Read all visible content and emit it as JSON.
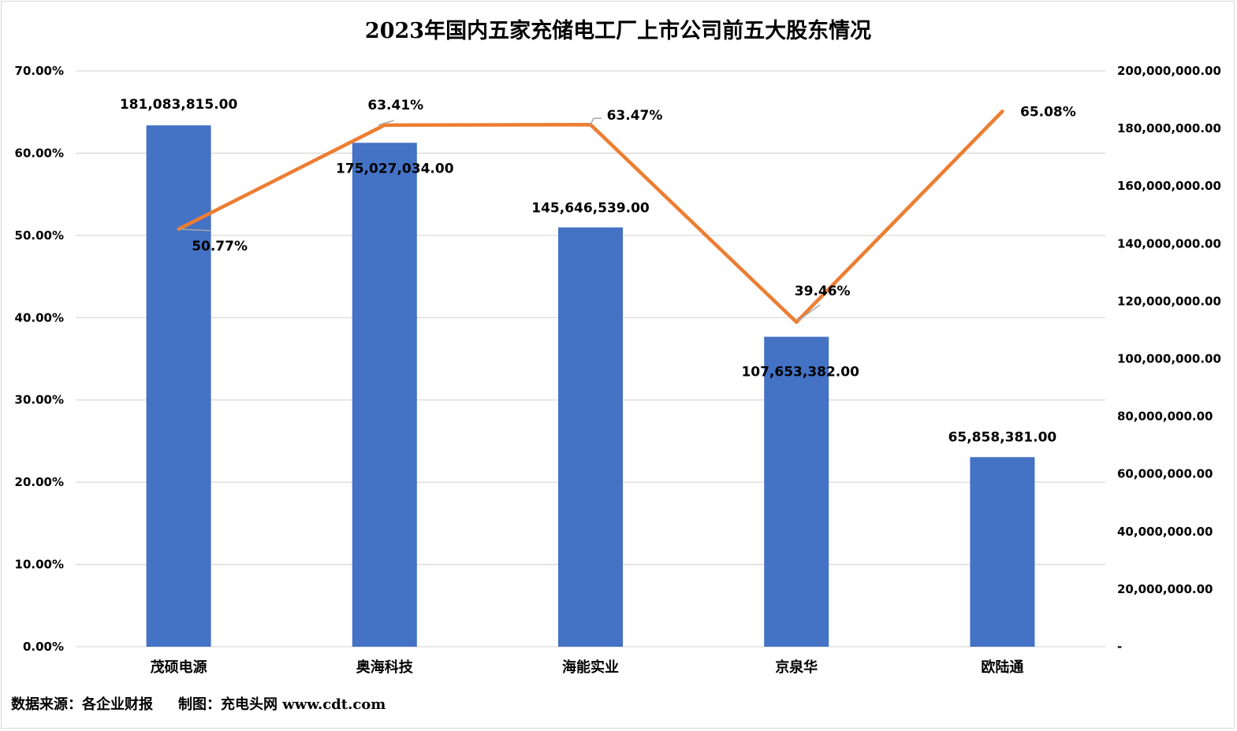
{
  "chart_data": {
    "type": "bar",
    "title": "2023年国内五家充储电工厂上市公司前五大股东情况",
    "categories": [
      "茂硕电源",
      "奥海科技",
      "海能实业",
      "京泉华",
      "欧陆通"
    ],
    "series": [
      {
        "type": "bar",
        "axis": "right",
        "color": "#4472C4",
        "values": [
          181083815.0,
          175027034.0,
          145646539.0,
          107653382.0,
          65858381.0
        ],
        "labels": [
          "181,083,815.00",
          "175,027,034.00",
          "145,646,539.00",
          "107,653,382.00",
          "65,858,381.00"
        ]
      },
      {
        "type": "line",
        "axis": "left",
        "color": "#ED7D31",
        "values": [
          50.77,
          63.41,
          63.47,
          39.46,
          65.08
        ],
        "labels": [
          "50.77%",
          "63.41%",
          "63.47%",
          "39.46%",
          "65.08%"
        ]
      }
    ],
    "y_left": {
      "ylim": [
        0,
        70
      ],
      "ticks": [
        "0.00%",
        "10.00%",
        "20.00%",
        "30.00%",
        "40.00%",
        "50.00%",
        "60.00%",
        "70.00%"
      ]
    },
    "y_right": {
      "ylim": [
        0,
        200000000
      ],
      "ticks": [
        "-",
        "20,000,000.00",
        "40,000,000.00",
        "60,000,000.00",
        "80,000,000.00",
        "100,000,000.00",
        "120,000,000.00",
        "140,000,000.00",
        "160,000,000.00",
        "180,000,000.00",
        "200,000,000.00"
      ]
    },
    "grid": true,
    "legend": "none"
  },
  "footer": {
    "source": "数据来源：各企业财报",
    "credit": "制图：充电头网 www.cdt.com"
  }
}
